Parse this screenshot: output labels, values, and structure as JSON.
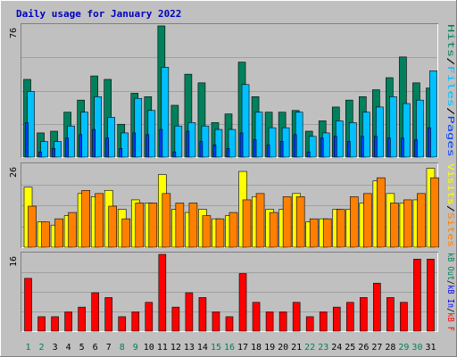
{
  "title": "Daily usage for January 2022",
  "colors": {
    "background": "#c0c0c0",
    "plot_bg": "#c0c0c0",
    "border_light": "#ffffff",
    "border_dark": "#808080",
    "title": "#0000c0",
    "hits": "#00805c",
    "files": "#00c0ff",
    "pages": "#0040ff",
    "visits": "#ffff00",
    "sites": "#ff8000",
    "kbin": "#0000ff",
    "kbout": "#00805c",
    "kbf": "#ff0000",
    "day_normal": "#000000",
    "day_weekend": "#00805c",
    "gridline": "#808080",
    "separator": "#ffffff"
  },
  "chart_data": [
    {
      "type": "bar",
      "panel": "hits-files-pages",
      "ymax_label": "76",
      "ylim": [
        0,
        76
      ],
      "x": [
        1,
        2,
        3,
        4,
        5,
        6,
        7,
        8,
        9,
        10,
        11,
        12,
        13,
        14,
        15,
        16,
        17,
        18,
        19,
        20,
        21,
        22,
        23,
        24,
        25,
        26,
        27,
        28,
        29,
        30,
        31
      ],
      "legend": [
        {
          "name": "Pages",
          "color_key": "pages"
        },
        {
          "name": "Files",
          "color_key": "files"
        },
        {
          "name": "Hits",
          "color_key": "hits"
        }
      ],
      "legend_separator": "/",
      "legend_placement": "right-vertical",
      "series": [
        {
          "name": "Hits",
          "color_key": "hits",
          "values": [
            45,
            14,
            15,
            26,
            33,
            47,
            45,
            19,
            37,
            35,
            76,
            30,
            48,
            43,
            20,
            25,
            55,
            35,
            26,
            26,
            27,
            15,
            21,
            29,
            33,
            35,
            39,
            46,
            58,
            43,
            40
          ]
        },
        {
          "name": "Files",
          "color_key": "files",
          "values": [
            38,
            9,
            9,
            18,
            26,
            35,
            23,
            14,
            34,
            27,
            52,
            18,
            20,
            18,
            16,
            16,
            42,
            26,
            17,
            17,
            26,
            12,
            14,
            21,
            20,
            26,
            29,
            35,
            31,
            33,
            50
          ]
        },
        {
          "name": "Pages",
          "color_key": "pages",
          "values": [
            20,
            3,
            5,
            11,
            13,
            16,
            11,
            5,
            14,
            13,
            16,
            3,
            15,
            9,
            7,
            5,
            14,
            10,
            7,
            9,
            13,
            3,
            11,
            12,
            9,
            12,
            12,
            11,
            11,
            10,
            17
          ]
        }
      ]
    },
    {
      "type": "bar",
      "panel": "visits-sites",
      "ymax_label": "26",
      "ylim": [
        0,
        26
      ],
      "x": [
        1,
        2,
        3,
        4,
        5,
        6,
        7,
        8,
        9,
        10,
        11,
        12,
        13,
        14,
        15,
        16,
        17,
        18,
        19,
        20,
        21,
        22,
        23,
        24,
        25,
        26,
        27,
        28,
        29,
        30,
        31
      ],
      "legend": [
        {
          "name": "Sites",
          "color_key": "sites"
        },
        {
          "name": "Visits",
          "color_key": "visits"
        }
      ],
      "legend_separator": "/",
      "legend_placement": "right-vertical",
      "series": [
        {
          "name": "Visits",
          "color_key": "visits",
          "values": [
            19,
            8,
            7,
            10,
            17,
            16,
            18,
            12,
            15,
            14,
            23,
            12,
            11,
            12,
            9,
            10,
            24,
            16,
            12,
            12,
            17,
            8,
            9,
            12,
            12,
            14,
            21,
            17,
            14,
            15,
            25
          ]
        },
        {
          "name": "Sites",
          "color_key": "sites",
          "values": [
            13,
            8,
            9,
            11,
            18,
            17,
            13,
            9,
            14,
            14,
            17,
            14,
            14,
            10,
            9,
            11,
            15,
            17,
            11,
            16,
            16,
            9,
            9,
            12,
            16,
            17,
            22,
            14,
            15,
            17,
            22
          ]
        }
      ]
    },
    {
      "type": "bar",
      "panel": "kbf-kbin-kbout",
      "ymax_label": "16",
      "ylim": [
        0,
        16
      ],
      "x": [
        1,
        2,
        3,
        4,
        5,
        6,
        7,
        8,
        9,
        10,
        11,
        12,
        13,
        14,
        15,
        16,
        17,
        18,
        19,
        20,
        21,
        22,
        23,
        24,
        25,
        26,
        27,
        28,
        29,
        30,
        31
      ],
      "legend": [
        {
          "name": "kB F",
          "color_key": "kbf"
        },
        {
          "name": "kB In",
          "color_key": "kbin"
        },
        {
          "name": "kB Out",
          "color_key": "kbout"
        }
      ],
      "legend_separator": "/",
      "legend_placement": "right-vertical",
      "series": [
        {
          "name": "kB F",
          "color_key": "kbf",
          "values": [
            11,
            3,
            3,
            4,
            5,
            8,
            7,
            3,
            4,
            6,
            16,
            5,
            8,
            7,
            4,
            3,
            12,
            6,
            4,
            4,
            6,
            3,
            4,
            5,
            6,
            7,
            10,
            7,
            6,
            15,
            15
          ]
        }
      ]
    }
  ],
  "day_labels": [
    "1",
    "2",
    "3",
    "4",
    "5",
    "6",
    "7",
    "8",
    "9",
    "10",
    "11",
    "12",
    "13",
    "14",
    "15",
    "16",
    "17",
    "18",
    "19",
    "20",
    "21",
    "22",
    "23",
    "24",
    "25",
    "26",
    "27",
    "28",
    "29",
    "30",
    "31"
  ],
  "weekend_days": [
    1,
    2,
    8,
    9,
    15,
    16,
    22,
    23,
    29,
    30
  ]
}
